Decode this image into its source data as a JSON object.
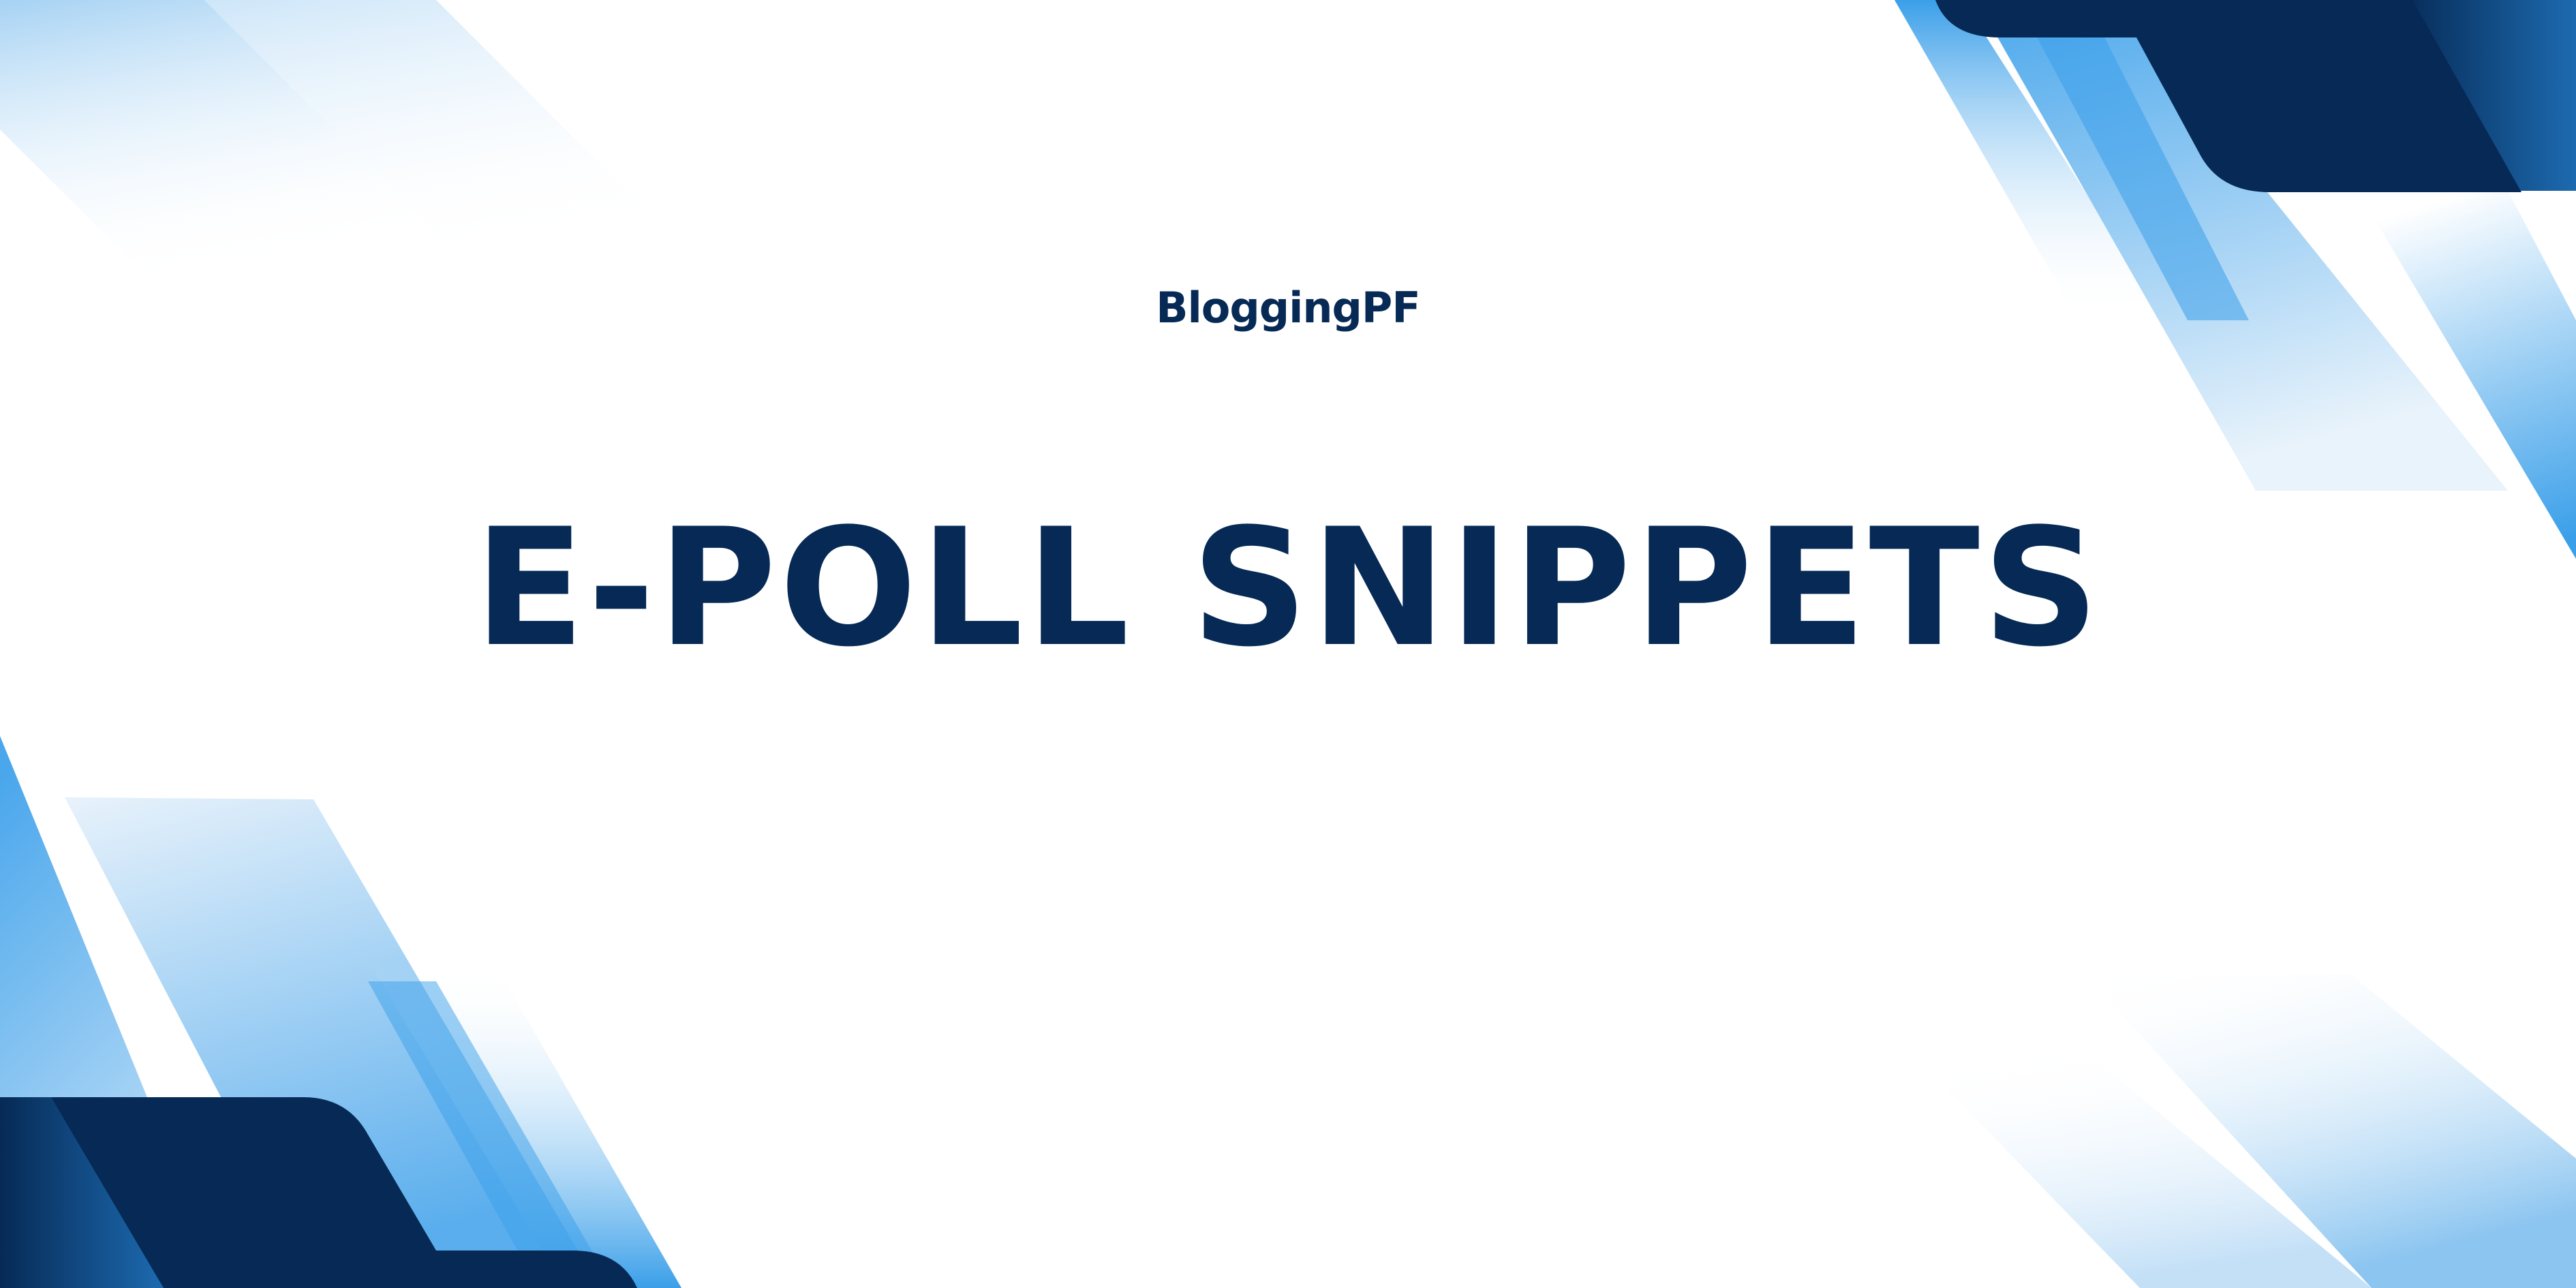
{
  "brand": {
    "name": "BloggingPF"
  },
  "hero": {
    "title": "E-POLL SNIPPETS"
  },
  "colors": {
    "navy": "#062a55",
    "blue": "#2f96e8",
    "light_blue": "#9ccdf2",
    "background": "#ffffff"
  }
}
